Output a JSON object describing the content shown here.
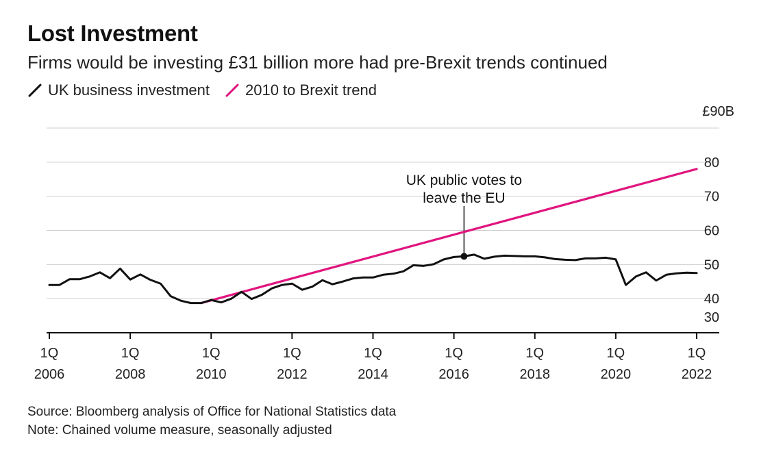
{
  "chart_data": {
    "type": "line",
    "title": "Lost Investment",
    "subtitle": "Firms would be investing £31 billion more had pre-Brexit trends continued",
    "y_unit_label": "£90B",
    "ylim": [
      30,
      90
    ],
    "yticks": [
      30,
      40,
      50,
      60,
      70,
      80
    ],
    "xlim": [
      2006.0,
      2022.0
    ],
    "grid": true,
    "legend_position": "top-left",
    "x_ticks": [
      {
        "x": 2006,
        "line1": "1Q",
        "line2": "2006"
      },
      {
        "x": 2008,
        "line1": "1Q",
        "line2": "2008"
      },
      {
        "x": 2010,
        "line1": "1Q",
        "line2": "2010"
      },
      {
        "x": 2012,
        "line1": "1Q",
        "line2": "2012"
      },
      {
        "x": 2014,
        "line1": "1Q",
        "line2": "2014"
      },
      {
        "x": 2016,
        "line1": "1Q",
        "line2": "2016"
      },
      {
        "x": 2018,
        "line1": "1Q",
        "line2": "2018"
      },
      {
        "x": 2020,
        "line1": "1Q",
        "line2": "2020"
      },
      {
        "x": 2022,
        "line1": "1Q",
        "line2": "2022"
      }
    ],
    "series": [
      {
        "name": "UK business investment",
        "color": "#111111",
        "points": [
          [
            2006.0,
            44.0
          ],
          [
            2006.25,
            44.0
          ],
          [
            2006.5,
            45.7
          ],
          [
            2006.75,
            45.7
          ],
          [
            2007.0,
            46.5
          ],
          [
            2007.25,
            47.7
          ],
          [
            2007.5,
            46.0
          ],
          [
            2007.75,
            48.8
          ],
          [
            2008.0,
            45.6
          ],
          [
            2008.25,
            47.1
          ],
          [
            2008.5,
            45.5
          ],
          [
            2008.75,
            44.4
          ],
          [
            2009.0,
            40.7
          ],
          [
            2009.25,
            39.4
          ],
          [
            2009.5,
            38.7
          ],
          [
            2009.75,
            38.7
          ],
          [
            2010.0,
            39.6
          ],
          [
            2010.25,
            38.9
          ],
          [
            2010.5,
            40.0
          ],
          [
            2010.75,
            42.0
          ],
          [
            2011.0,
            39.9
          ],
          [
            2011.25,
            41.1
          ],
          [
            2011.5,
            43.0
          ],
          [
            2011.75,
            44.0
          ],
          [
            2012.0,
            44.4
          ],
          [
            2012.25,
            42.6
          ],
          [
            2012.5,
            43.5
          ],
          [
            2012.75,
            45.4
          ],
          [
            2013.0,
            44.2
          ],
          [
            2013.25,
            45.0
          ],
          [
            2013.5,
            45.9
          ],
          [
            2013.75,
            46.2
          ],
          [
            2014.0,
            46.2
          ],
          [
            2014.25,
            47.0
          ],
          [
            2014.5,
            47.3
          ],
          [
            2014.75,
            48.0
          ],
          [
            2015.0,
            49.8
          ],
          [
            2015.25,
            49.6
          ],
          [
            2015.5,
            50.1
          ],
          [
            2015.75,
            51.5
          ],
          [
            2016.0,
            52.2
          ],
          [
            2016.25,
            52.4
          ],
          [
            2016.5,
            52.9
          ],
          [
            2016.75,
            51.7
          ],
          [
            2017.0,
            52.3
          ],
          [
            2017.25,
            52.6
          ],
          [
            2017.5,
            52.5
          ],
          [
            2017.75,
            52.4
          ],
          [
            2018.0,
            52.4
          ],
          [
            2018.25,
            52.1
          ],
          [
            2018.5,
            51.6
          ],
          [
            2018.75,
            51.4
          ],
          [
            2019.0,
            51.3
          ],
          [
            2019.25,
            51.8
          ],
          [
            2019.5,
            51.8
          ],
          [
            2019.75,
            52.0
          ],
          [
            2020.0,
            51.5
          ],
          [
            2020.25,
            44.0
          ],
          [
            2020.5,
            46.5
          ],
          [
            2020.75,
            47.7
          ],
          [
            2021.0,
            45.3
          ],
          [
            2021.25,
            47.0
          ],
          [
            2021.5,
            47.4
          ],
          [
            2021.75,
            47.6
          ],
          [
            2022.0,
            47.5
          ]
        ]
      },
      {
        "name": "2010 to Brexit trend",
        "color": "#e0157f",
        "points": [
          [
            2009.75,
            38.7
          ],
          [
            2022.0,
            78.0
          ]
        ]
      }
    ],
    "annotations": [
      {
        "text_line1": "UK public votes to",
        "text_line2": "leave the EU",
        "x": 2016.25,
        "y": 52.4
      }
    ]
  },
  "footer": {
    "source": "Source: Bloomberg analysis of Office for National Statistics data",
    "note": "Note: Chained volume measure, seasonally adjusted"
  }
}
